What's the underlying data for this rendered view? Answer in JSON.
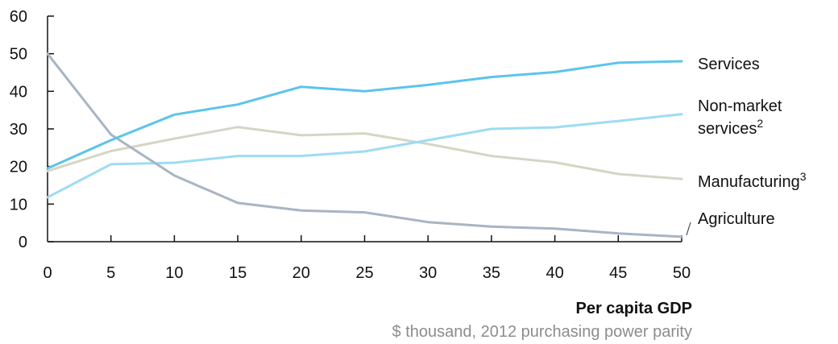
{
  "chart_data": {
    "type": "line",
    "x": [
      0,
      5,
      10,
      15,
      20,
      25,
      30,
      35,
      40,
      45,
      50
    ],
    "xlim": [
      0,
      50
    ],
    "ylim": [
      0,
      60
    ],
    "xticks": [
      "0",
      "5",
      "10",
      "15",
      "20",
      "25",
      "30",
      "35",
      "40",
      "45",
      "50"
    ],
    "yticks": [
      "0",
      "10",
      "20",
      "30",
      "40",
      "50",
      "60"
    ],
    "xlabel": "Per capita GDP",
    "xlabel_sub": "$ thousand, 2012 purchasing power parity",
    "ylabel": "",
    "grid": false,
    "legend": "direct labels at right end of lines",
    "series": [
      {
        "name": "Services",
        "sup": "",
        "color": "#5bc4ec",
        "values": [
          19.5,
          27,
          33.8,
          36.5,
          41.2,
          40,
          41.7,
          43.8,
          45.1,
          47.6,
          48
        ]
      },
      {
        "name": "Non-market",
        "name_line2": "services",
        "sup": "2",
        "color": "#9ddcf3",
        "values": [
          11.8,
          20.6,
          21,
          22.8,
          22.8,
          24,
          27,
          30,
          30.4,
          32.1,
          33.9
        ]
      },
      {
        "name": "Manufacturing",
        "sup": "3",
        "color": "#d6d5c5",
        "values": [
          18.8,
          24.1,
          27.4,
          30.5,
          28.3,
          28.8,
          26,
          22.8,
          21.1,
          18,
          16.7
        ]
      },
      {
        "name": "Agriculture",
        "sup": "",
        "color": "#a7b5c3",
        "values": [
          50,
          28.5,
          17.6,
          10.3,
          8.3,
          7.8,
          5.2,
          4,
          3.5,
          2.2,
          1.3
        ]
      }
    ]
  }
}
